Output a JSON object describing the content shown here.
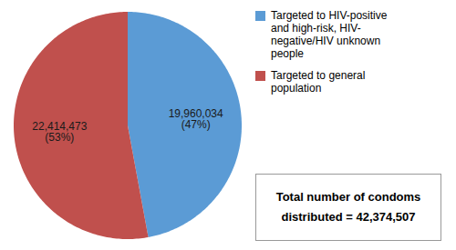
{
  "chart_data": {
    "type": "pie",
    "categories": [
      "Targeted to HIV-positive\nand high-risk, HIV-\nnegative/HIV unknown\npeople",
      "Targeted to general\npopulation"
    ],
    "values": [
      19960034,
      22414473
    ],
    "value_labels": [
      "19,960,034\n(47%)",
      "22,414,473\n(53%)"
    ],
    "colors": [
      "#5B9BD5",
      "#C0504D"
    ],
    "data_labels": true,
    "legend": "upper right",
    "annotations": [
      "Total number of condoms\ndistributed = 42,374,507"
    ]
  }
}
